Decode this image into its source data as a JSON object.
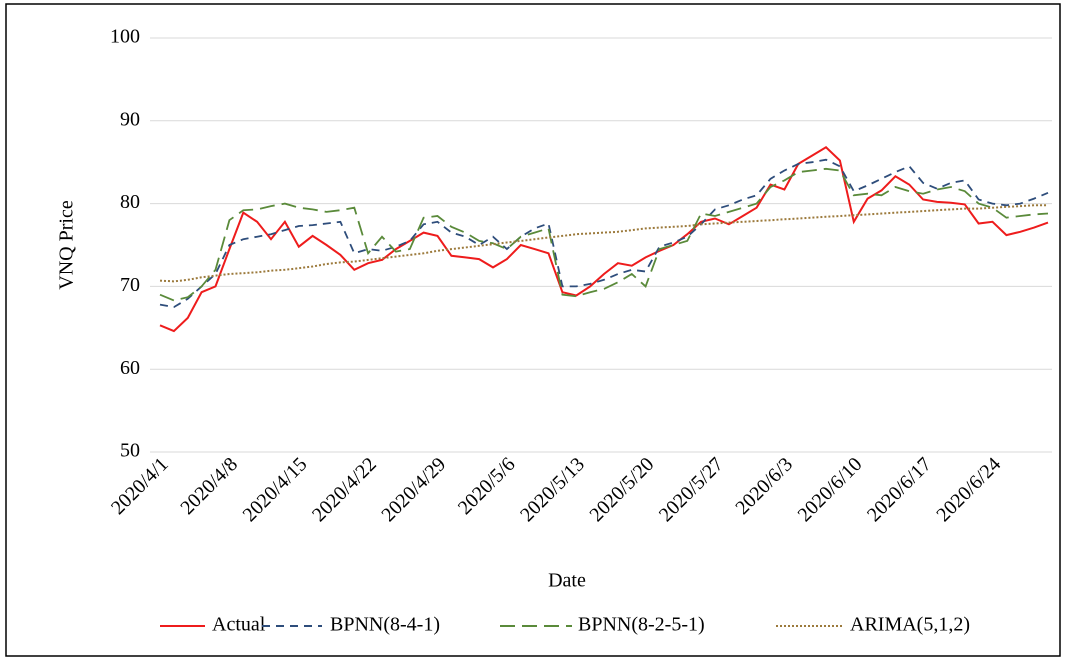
{
  "chart_data": {
    "type": "line",
    "y_label": "VNQ Price",
    "x_label": "Date",
    "categories": [
      "2020/4/1",
      null,
      null,
      null,
      null,
      "2020/4/8",
      null,
      null,
      null,
      null,
      "2020/4/15",
      null,
      null,
      null,
      null,
      "2020/4/22",
      null,
      null,
      null,
      null,
      "2020/4/29",
      null,
      null,
      null,
      null,
      "2020/5/6",
      null,
      null,
      null,
      null,
      "2020/5/13",
      null,
      null,
      null,
      null,
      "2020/5/20",
      null,
      null,
      null,
      null,
      "2020/5/27",
      null,
      null,
      null,
      null,
      "2020/6/3",
      null,
      null,
      null,
      null,
      "2020/6/10",
      null,
      null,
      null,
      null,
      "2020/6/17",
      null,
      null,
      null,
      null,
      "2020/6/24",
      null,
      null,
      null,
      null
    ],
    "ylim": [
      50,
      100
    ],
    "yticks": [
      50,
      60,
      70,
      80,
      90,
      100
    ],
    "grid": true,
    "legend": "bottom",
    "series": [
      {
        "name": "Actual",
        "color": "#ee1c1c",
        "dash": "solid",
        "values": [
          65.3,
          64.6,
          66.2,
          69.3,
          70,
          74.5,
          78.9,
          77.8,
          75.7,
          77.8,
          74.8,
          76.1,
          75,
          73.8,
          72,
          72.8,
          73.2,
          74.5,
          75.5,
          76.5,
          76.1,
          73.7,
          73.5,
          73.3,
          72.3,
          73.3,
          75,
          74.5,
          74,
          69.3,
          68.9,
          70,
          71.5,
          72.8,
          72.5,
          73.5,
          74.3,
          75,
          76.3,
          77.8,
          78.2,
          77.5,
          78.5,
          79.5,
          82.3,
          81.7,
          84.8,
          85.8,
          86.8,
          85.2,
          77.8,
          80.6,
          81.6,
          83.3,
          82.3,
          80.5,
          80.2,
          80.1,
          79.9,
          77.6,
          77.8,
          76.2,
          76.6,
          77.1,
          77.7
        ]
      },
      {
        "name": "BPNN(8-4-1)",
        "color": "#2e4d7b",
        "dash": "dashed",
        "values": [
          67.8,
          67.5,
          68.5,
          70,
          71.5,
          75,
          75.7,
          76,
          76.3,
          76.8,
          77.3,
          77.4,
          77.6,
          77.8,
          74,
          74.5,
          74.3,
          74.8,
          75.5,
          77.5,
          77.8,
          76.5,
          76,
          75,
          76,
          74.5,
          76,
          77,
          77.6,
          70,
          70,
          70.3,
          70.8,
          71.5,
          72,
          71.8,
          74.8,
          75.3,
          76,
          77.5,
          79.3,
          79.8,
          80.5,
          81,
          83,
          84,
          84.8,
          85,
          85.3,
          84.5,
          81.5,
          82.2,
          83,
          83.8,
          84.5,
          82.5,
          81.8,
          82.5,
          82.8,
          80.5,
          80,
          79.8,
          80,
          80.6,
          81.3
        ]
      },
      {
        "name": "BPNN(8-2-5-1)",
        "color": "#5a8a3a",
        "dash": "longdash",
        "values": [
          69,
          68.3,
          68.7,
          70,
          72,
          78,
          79.2,
          79.3,
          79.7,
          80,
          79.5,
          79.3,
          79,
          79.2,
          79.5,
          74,
          76,
          74.2,
          74.5,
          78.3,
          78.5,
          77.2,
          76.5,
          75.5,
          75.2,
          74.5,
          76,
          76.5,
          77,
          69,
          68.8,
          69.3,
          69.7,
          70.5,
          71.5,
          70,
          74.5,
          75,
          75.5,
          78.8,
          78.5,
          79,
          79.5,
          80,
          82,
          82.8,
          83.8,
          84,
          84.2,
          84,
          81,
          81.2,
          81,
          82,
          81.5,
          81.2,
          81.7,
          82,
          81.5,
          80,
          79.5,
          78.3,
          78.5,
          78.7,
          78.8
        ]
      },
      {
        "name": "ARIMA(5,1,2)",
        "color": "#9c7a3c",
        "dash": "dotted",
        "values": [
          70.7,
          70.6,
          70.8,
          71.1,
          71.3,
          71.5,
          71.6,
          71.7,
          71.9,
          72.0,
          72.2,
          72.4,
          72.7,
          72.9,
          73.0,
          73.2,
          73.4,
          73.6,
          73.8,
          74.0,
          74.3,
          74.5,
          74.7,
          74.9,
          75.1,
          75.3,
          75.5,
          75.7,
          75.9,
          76.1,
          76.3,
          76.4,
          76.5,
          76.6,
          76.8,
          77.0,
          77.1,
          77.2,
          77.3,
          77.5,
          77.6,
          77.7,
          77.8,
          77.9,
          78.0,
          78.1,
          78.2,
          78.3,
          78.4,
          78.5,
          78.6,
          78.7,
          78.8,
          78.9,
          79.0,
          79.1,
          79.2,
          79.3,
          79.4,
          79.4,
          79.5,
          79.6,
          79.7,
          79.8,
          79.8
        ]
      }
    ]
  }
}
